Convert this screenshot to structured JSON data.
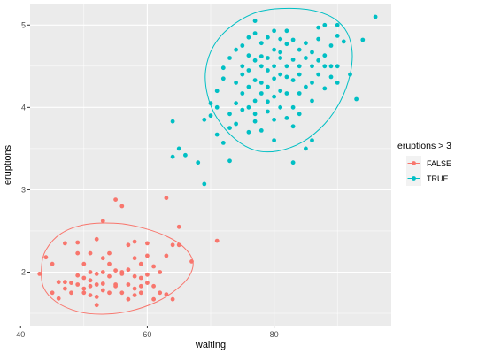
{
  "chart_data": {
    "type": "scatter",
    "xlabel": "waiting",
    "ylabel": "eruptions",
    "xlim": [
      41.5,
      98.5
    ],
    "ylim": [
      1.35,
      5.25
    ],
    "x_ticks": [
      40,
      60,
      80
    ],
    "y_ticks": [
      2,
      3,
      4,
      5
    ],
    "grid": true,
    "legend": {
      "title": "eruptions > 3",
      "placement": "right",
      "entries": [
        "FALSE",
        "TRUE"
      ]
    },
    "colors": {
      "FALSE": "#F8766D",
      "TRUE": "#00BFC4",
      "panel": "#EBEBEB",
      "grid": "#FFFFFF"
    },
    "ellipses": [
      {
        "series": "FALSE",
        "points": [
          [
            67.2,
            2.13
          ],
          [
            65.8,
            2.3
          ],
          [
            63.2,
            2.43
          ],
          [
            59.6,
            2.53
          ],
          [
            55.6,
            2.59
          ],
          [
            50.4,
            2.58
          ],
          [
            46.4,
            2.47
          ],
          [
            44.0,
            2.27
          ],
          [
            43.3,
            2.06
          ],
          [
            43.6,
            1.82
          ],
          [
            45.6,
            1.64
          ],
          [
            49.1,
            1.52
          ],
          [
            53.0,
            1.49
          ],
          [
            57.4,
            1.53
          ],
          [
            61.5,
            1.64
          ],
          [
            64.6,
            1.79
          ],
          [
            66.6,
            1.95
          ]
        ]
      },
      {
        "series": "TRUE",
        "points": [
          [
            84.0,
            5.2
          ],
          [
            88.5,
            5.12
          ],
          [
            91.2,
            4.95
          ],
          [
            92.3,
            4.7
          ],
          [
            92.0,
            4.4
          ],
          [
            90.5,
            4.08
          ],
          [
            88.0,
            3.8
          ],
          [
            84.5,
            3.58
          ],
          [
            80.5,
            3.47
          ],
          [
            77.0,
            3.48
          ],
          [
            73.8,
            3.62
          ],
          [
            71.0,
            3.87
          ],
          [
            69.5,
            4.15
          ],
          [
            69.2,
            4.45
          ],
          [
            70.5,
            4.75
          ],
          [
            73.5,
            5.0
          ],
          [
            78.0,
            5.17
          ]
        ]
      }
    ],
    "series": [
      {
        "name": "FALSE",
        "points": [
          [
            43,
            1.98
          ],
          [
            44,
            2.18
          ],
          [
            45,
            2.1
          ],
          [
            45,
            1.75
          ],
          [
            46,
            1.88
          ],
          [
            46,
            1.68
          ],
          [
            47,
            1.88
          ],
          [
            47,
            1.8
          ],
          [
            47,
            2.35
          ],
          [
            48,
            1.87
          ],
          [
            48,
            1.75
          ],
          [
            49,
            1.85
          ],
          [
            49,
            1.96
          ],
          [
            49,
            2.23
          ],
          [
            49,
            2.36
          ],
          [
            50,
            1.8
          ],
          [
            50,
            1.93
          ],
          [
            50,
            2.1
          ],
          [
            50,
            1.75
          ],
          [
            51,
            1.9
          ],
          [
            51,
            2.0
          ],
          [
            51,
            1.83
          ],
          [
            51,
            1.72
          ],
          [
            51,
            2.23
          ],
          [
            52,
            1.85
          ],
          [
            52,
            1.7
          ],
          [
            52,
            1.98
          ],
          [
            52,
            2.4
          ],
          [
            52,
            1.6
          ],
          [
            53,
            1.78
          ],
          [
            53,
            2.0
          ],
          [
            53,
            2.17
          ],
          [
            53,
            2.62
          ],
          [
            53,
            1.86
          ],
          [
            54,
            1.75
          ],
          [
            54,
            2.1
          ],
          [
            54,
            1.95
          ],
          [
            54,
            2.23
          ],
          [
            55,
            2.88
          ],
          [
            55,
            1.83
          ],
          [
            55,
            1.85
          ],
          [
            55,
            2.02
          ],
          [
            56,
            1.75
          ],
          [
            56,
            2.0
          ],
          [
            56,
            2.8
          ],
          [
            56,
            1.98
          ],
          [
            57,
            1.85
          ],
          [
            57,
            2.33
          ],
          [
            57,
            1.67
          ],
          [
            57,
            2.03
          ],
          [
            58,
            1.8
          ],
          [
            58,
            2.17
          ],
          [
            58,
            1.72
          ],
          [
            58,
            1.95
          ],
          [
            58,
            2.37
          ],
          [
            59,
            1.75
          ],
          [
            59,
            1.93
          ],
          [
            59,
            2.1
          ],
          [
            59,
            1.83
          ],
          [
            60,
            2.2
          ],
          [
            60,
            1.87
          ],
          [
            60,
            2.35
          ],
          [
            60,
            1.97
          ],
          [
            61,
            1.67
          ],
          [
            61,
            1.83
          ],
          [
            61,
            2.07
          ],
          [
            62,
            2.0
          ],
          [
            62,
            1.75
          ],
          [
            63,
            2.9
          ],
          [
            63,
            2.2
          ],
          [
            63,
            1.73
          ],
          [
            64,
            2.33
          ],
          [
            64,
            1.67
          ],
          [
            65,
            2.55
          ],
          [
            65,
            2.33
          ],
          [
            67,
            2.13
          ],
          [
            71,
            2.38
          ]
        ]
      },
      {
        "name": "TRUE",
        "points": [
          [
            64,
            3.83
          ],
          [
            64,
            3.4
          ],
          [
            65,
            3.5
          ],
          [
            66,
            3.42
          ],
          [
            68,
            3.33
          ],
          [
            69,
            3.07
          ],
          [
            69,
            3.85
          ],
          [
            70,
            3.9
          ],
          [
            70,
            4.05
          ],
          [
            71,
            3.67
          ],
          [
            71,
            4.0
          ],
          [
            71,
            4.2
          ],
          [
            72,
            3.57
          ],
          [
            72,
            4.35
          ],
          [
            72,
            4.48
          ],
          [
            73,
            3.75
          ],
          [
            73,
            3.92
          ],
          [
            73,
            4.6
          ],
          [
            73,
            3.35
          ],
          [
            74,
            4.05
          ],
          [
            74,
            4.7
          ],
          [
            74,
            4.3
          ],
          [
            74,
            3.8
          ],
          [
            75,
            4.5
          ],
          [
            75,
            4.17
          ],
          [
            75,
            3.97
          ],
          [
            75,
            4.75
          ],
          [
            75,
            4.4
          ],
          [
            76,
            4.63
          ],
          [
            76,
            4.0
          ],
          [
            76,
            4.25
          ],
          [
            76,
            4.85
          ],
          [
            76,
            3.7
          ],
          [
            76,
            4.45
          ],
          [
            77,
            3.83
          ],
          [
            77,
            4.57
          ],
          [
            77,
            4.33
          ],
          [
            77,
            4.9
          ],
          [
            77,
            4.08
          ],
          [
            77,
            5.05
          ],
          [
            77,
            3.92
          ],
          [
            78,
            4.5
          ],
          [
            78,
            4.17
          ],
          [
            78,
            4.78
          ],
          [
            78,
            4.62
          ],
          [
            78,
            3.72
          ],
          [
            78,
            4.3
          ],
          [
            79,
            4.45
          ],
          [
            79,
            4.07
          ],
          [
            79,
            4.85
          ],
          [
            79,
            3.95
          ],
          [
            79,
            4.6
          ],
          [
            79,
            4.25
          ],
          [
            80,
            4.7
          ],
          [
            80,
            4.5
          ],
          [
            80,
            4.13
          ],
          [
            80,
            3.85
          ],
          [
            80,
            4.93
          ],
          [
            80,
            4.35
          ],
          [
            80,
            3.6
          ],
          [
            81,
            4.6
          ],
          [
            81,
            4.2
          ],
          [
            81,
            4.83
          ],
          [
            81,
            4.4
          ],
          [
            81,
            4.0
          ],
          [
            81,
            4.67
          ],
          [
            82,
            4.5
          ],
          [
            82,
            4.17
          ],
          [
            82,
            3.87
          ],
          [
            82,
            4.77
          ],
          [
            82,
            4.37
          ],
          [
            82,
            4.93
          ],
          [
            83,
            4.33
          ],
          [
            83,
            4.58
          ],
          [
            83,
            4.0
          ],
          [
            83,
            3.77
          ],
          [
            83,
            4.82
          ],
          [
            83,
            3.33
          ],
          [
            84,
            4.5
          ],
          [
            84,
            4.17
          ],
          [
            84,
            4.7
          ],
          [
            84,
            3.92
          ],
          [
            84,
            4.4
          ],
          [
            85,
            4.6
          ],
          [
            85,
            4.25
          ],
          [
            85,
            3.5
          ],
          [
            85,
            4.78
          ],
          [
            86,
            4.08
          ],
          [
            86,
            4.5
          ],
          [
            86,
            4.67
          ],
          [
            86,
            4.3
          ],
          [
            86,
            3.6
          ],
          [
            87,
            4.57
          ],
          [
            87,
            4.97
          ],
          [
            87,
            4.83
          ],
          [
            87,
            4.4
          ],
          [
            88,
            5.0
          ],
          [
            88,
            4.5
          ],
          [
            88,
            4.23
          ],
          [
            88,
            4.63
          ],
          [
            89,
            4.75
          ],
          [
            89,
            4.37
          ],
          [
            89,
            4.5
          ],
          [
            90,
            4.87
          ],
          [
            90,
            4.5
          ],
          [
            90,
            4.3
          ],
          [
            90,
            5.0
          ],
          [
            91,
            4.8
          ],
          [
            92,
            4.4
          ],
          [
            93,
            4.1
          ],
          [
            94,
            4.82
          ],
          [
            96,
            5.1
          ]
        ]
      }
    ]
  }
}
